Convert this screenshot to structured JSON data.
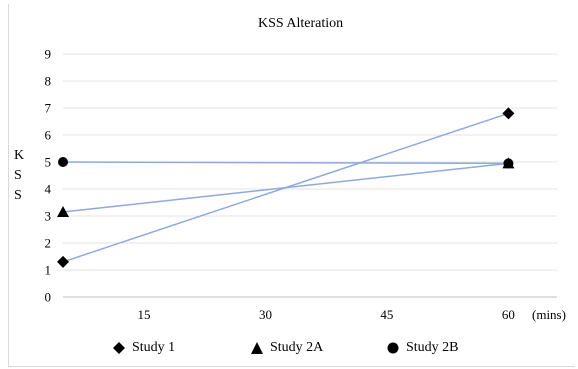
{
  "chart_data": {
    "type": "line",
    "title": "KSS Alteration",
    "ylabel": "KSS",
    "xlabel": "(mins)",
    "x_ticks": [
      15,
      30,
      45,
      60
    ],
    "y_ticks": [
      0,
      1,
      2,
      3,
      4,
      5,
      6,
      7,
      8,
      9
    ],
    "xlim": [
      5,
      66
    ],
    "ylim": [
      0,
      9
    ],
    "grid": true,
    "legend_position": "bottom",
    "line_color": "#8eaadb",
    "series": [
      {
        "name": "Study 1",
        "marker": "diamond",
        "x": [
          5,
          60
        ],
        "y": [
          1.3,
          6.8
        ]
      },
      {
        "name": "Study 2A",
        "marker": "triangle",
        "x": [
          5,
          60
        ],
        "y": [
          3.15,
          4.95
        ]
      },
      {
        "name": "Study 2B",
        "marker": "circle",
        "x": [
          5,
          60
        ],
        "y": [
          5.0,
          4.95
        ]
      }
    ]
  }
}
